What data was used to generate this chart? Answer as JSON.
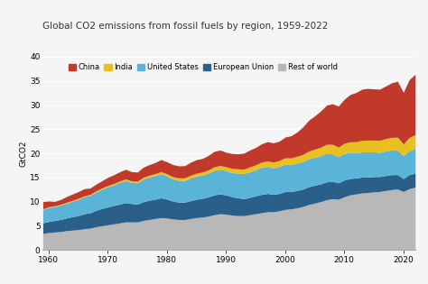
{
  "title": "Global CO2 emissions from fossil fuels by region, 1959-2022",
  "ylabel": "GtCO2",
  "xlim": [
    1959,
    2022
  ],
  "ylim": [
    0,
    40
  ],
  "yticks": [
    0,
    5,
    10,
    15,
    20,
    25,
    30,
    35,
    40
  ],
  "xticks": [
    1960,
    1970,
    1980,
    1990,
    2000,
    2010,
    2020
  ],
  "background_color": "#f5f5f5",
  "legend_labels": [
    "China",
    "India",
    "United States",
    "European Union",
    "Rest of world"
  ],
  "colors": {
    "China": "#c0392b",
    "India": "#e8c020",
    "United States": "#5ab4d8",
    "European Union": "#2a5f8a",
    "Rest of world": "#b8b8b8"
  },
  "years": [
    1959,
    1960,
    1961,
    1962,
    1963,
    1964,
    1965,
    1966,
    1967,
    1968,
    1969,
    1970,
    1971,
    1972,
    1973,
    1974,
    1975,
    1976,
    1977,
    1978,
    1979,
    1980,
    1981,
    1982,
    1983,
    1984,
    1985,
    1986,
    1987,
    1988,
    1989,
    1990,
    1991,
    1992,
    1993,
    1994,
    1995,
    1996,
    1997,
    1998,
    1999,
    2000,
    2001,
    2002,
    2003,
    2004,
    2005,
    2006,
    2007,
    2008,
    2009,
    2010,
    2011,
    2012,
    2013,
    2014,
    2015,
    2016,
    2017,
    2018,
    2019,
    2020,
    2021,
    2022
  ],
  "rest_of_world": [
    3.4,
    3.6,
    3.7,
    3.8,
    4.0,
    4.1,
    4.2,
    4.4,
    4.5,
    4.8,
    5.0,
    5.2,
    5.4,
    5.6,
    5.8,
    5.8,
    5.8,
    6.1,
    6.3,
    6.5,
    6.7,
    6.6,
    6.4,
    6.3,
    6.3,
    6.5,
    6.7,
    6.8,
    7.0,
    7.3,
    7.5,
    7.4,
    7.2,
    7.1,
    7.1,
    7.3,
    7.5,
    7.7,
    7.9,
    7.9,
    8.1,
    8.4,
    8.5,
    8.7,
    9.0,
    9.4,
    9.7,
    10.0,
    10.4,
    10.6,
    10.5,
    11.0,
    11.4,
    11.6,
    11.8,
    11.9,
    12.0,
    12.1,
    12.3,
    12.5,
    12.6,
    12.1,
    12.7,
    13.0
  ],
  "european_union": [
    2.2,
    2.3,
    2.4,
    2.5,
    2.6,
    2.8,
    2.9,
    3.1,
    3.2,
    3.4,
    3.6,
    3.7,
    3.8,
    3.9,
    4.0,
    3.8,
    3.7,
    3.9,
    4.0,
    4.0,
    4.1,
    3.9,
    3.7,
    3.6,
    3.6,
    3.7,
    3.8,
    3.9,
    4.0,
    4.1,
    4.1,
    4.0,
    3.8,
    3.7,
    3.5,
    3.6,
    3.7,
    3.8,
    3.8,
    3.6,
    3.6,
    3.7,
    3.6,
    3.6,
    3.6,
    3.7,
    3.7,
    3.7,
    3.7,
    3.6,
    3.4,
    3.5,
    3.4,
    3.3,
    3.3,
    3.2,
    3.2,
    3.1,
    3.1,
    3.1,
    3.0,
    2.7,
    2.9,
    2.9
  ],
  "united_states": [
    2.8,
    2.9,
    2.9,
    3.0,
    3.1,
    3.2,
    3.4,
    3.5,
    3.6,
    3.8,
    4.0,
    4.2,
    4.3,
    4.5,
    4.6,
    4.4,
    4.4,
    4.7,
    4.8,
    4.9,
    5.0,
    4.8,
    4.6,
    4.5,
    4.5,
    4.7,
    4.8,
    4.8,
    4.9,
    5.1,
    5.1,
    5.0,
    5.0,
    5.1,
    5.2,
    5.3,
    5.4,
    5.6,
    5.6,
    5.5,
    5.6,
    5.7,
    5.6,
    5.7,
    5.7,
    5.8,
    5.8,
    5.8,
    5.9,
    5.7,
    5.4,
    5.5,
    5.4,
    5.2,
    5.2,
    5.2,
    5.1,
    5.0,
    5.1,
    5.1,
    5.1,
    4.7,
    5.0,
    5.1
  ],
  "india": [
    0.12,
    0.13,
    0.14,
    0.15,
    0.16,
    0.17,
    0.18,
    0.19,
    0.21,
    0.22,
    0.24,
    0.25,
    0.27,
    0.28,
    0.3,
    0.31,
    0.33,
    0.35,
    0.37,
    0.4,
    0.42,
    0.45,
    0.48,
    0.51,
    0.54,
    0.57,
    0.6,
    0.64,
    0.68,
    0.73,
    0.78,
    0.82,
    0.87,
    0.9,
    0.94,
    0.98,
    1.03,
    1.08,
    1.13,
    1.18,
    1.23,
    1.28,
    1.35,
    1.41,
    1.48,
    1.57,
    1.67,
    1.77,
    1.87,
    1.97,
    2.0,
    2.1,
    2.2,
    2.3,
    2.4,
    2.45,
    2.45,
    2.5,
    2.55,
    2.6,
    2.65,
    2.44,
    2.7,
    2.87
  ],
  "china": [
    1.5,
    1.2,
    0.9,
    1.0,
    1.2,
    1.3,
    1.4,
    1.5,
    1.3,
    1.4,
    1.5,
    1.7,
    1.8,
    1.9,
    2.0,
    1.9,
    1.9,
    2.1,
    2.2,
    2.3,
    2.5,
    2.5,
    2.5,
    2.5,
    2.5,
    2.7,
    2.8,
    2.8,
    3.0,
    3.2,
    3.2,
    3.0,
    3.1,
    3.1,
    3.3,
    3.5,
    3.6,
    3.8,
    4.0,
    4.0,
    4.0,
    4.3,
    4.6,
    5.0,
    5.7,
    6.4,
    6.9,
    7.5,
    8.1,
    8.4,
    8.5,
    9.1,
    9.8,
    10.2,
    10.6,
    10.7,
    10.6,
    10.6,
    10.9,
    11.3,
    11.6,
    10.7,
    12.0,
    12.5
  ]
}
